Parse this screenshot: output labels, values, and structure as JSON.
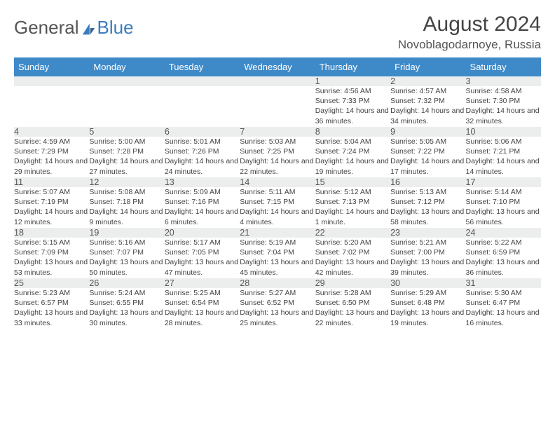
{
  "logo": {
    "text1": "General",
    "text2": "Blue"
  },
  "title": "August 2024",
  "location": "Novoblagodarnoye, Russia",
  "colors": {
    "header_bg": "#3e8ac9",
    "header_text": "#ffffff",
    "daynum_bg": "#eceded",
    "border": "#b6bdbf",
    "text": "#444444",
    "logo_gray": "#555555",
    "logo_blue": "#3a7cc0"
  },
  "weekdays": [
    "Sunday",
    "Monday",
    "Tuesday",
    "Wednesday",
    "Thursday",
    "Friday",
    "Saturday"
  ],
  "weeks": [
    [
      null,
      null,
      null,
      null,
      {
        "n": "1",
        "sr": "4:56 AM",
        "ss": "7:33 PM",
        "dl": "14 hours and 36 minutes."
      },
      {
        "n": "2",
        "sr": "4:57 AM",
        "ss": "7:32 PM",
        "dl": "14 hours and 34 minutes."
      },
      {
        "n": "3",
        "sr": "4:58 AM",
        "ss": "7:30 PM",
        "dl": "14 hours and 32 minutes."
      }
    ],
    [
      {
        "n": "4",
        "sr": "4:59 AM",
        "ss": "7:29 PM",
        "dl": "14 hours and 29 minutes."
      },
      {
        "n": "5",
        "sr": "5:00 AM",
        "ss": "7:28 PM",
        "dl": "14 hours and 27 minutes."
      },
      {
        "n": "6",
        "sr": "5:01 AM",
        "ss": "7:26 PM",
        "dl": "14 hours and 24 minutes."
      },
      {
        "n": "7",
        "sr": "5:03 AM",
        "ss": "7:25 PM",
        "dl": "14 hours and 22 minutes."
      },
      {
        "n": "8",
        "sr": "5:04 AM",
        "ss": "7:24 PM",
        "dl": "14 hours and 19 minutes."
      },
      {
        "n": "9",
        "sr": "5:05 AM",
        "ss": "7:22 PM",
        "dl": "14 hours and 17 minutes."
      },
      {
        "n": "10",
        "sr": "5:06 AM",
        "ss": "7:21 PM",
        "dl": "14 hours and 14 minutes."
      }
    ],
    [
      {
        "n": "11",
        "sr": "5:07 AM",
        "ss": "7:19 PM",
        "dl": "14 hours and 12 minutes."
      },
      {
        "n": "12",
        "sr": "5:08 AM",
        "ss": "7:18 PM",
        "dl": "14 hours and 9 minutes."
      },
      {
        "n": "13",
        "sr": "5:09 AM",
        "ss": "7:16 PM",
        "dl": "14 hours and 6 minutes."
      },
      {
        "n": "14",
        "sr": "5:11 AM",
        "ss": "7:15 PM",
        "dl": "14 hours and 4 minutes."
      },
      {
        "n": "15",
        "sr": "5:12 AM",
        "ss": "7:13 PM",
        "dl": "14 hours and 1 minute."
      },
      {
        "n": "16",
        "sr": "5:13 AM",
        "ss": "7:12 PM",
        "dl": "13 hours and 58 minutes."
      },
      {
        "n": "17",
        "sr": "5:14 AM",
        "ss": "7:10 PM",
        "dl": "13 hours and 56 minutes."
      }
    ],
    [
      {
        "n": "18",
        "sr": "5:15 AM",
        "ss": "7:09 PM",
        "dl": "13 hours and 53 minutes."
      },
      {
        "n": "19",
        "sr": "5:16 AM",
        "ss": "7:07 PM",
        "dl": "13 hours and 50 minutes."
      },
      {
        "n": "20",
        "sr": "5:17 AM",
        "ss": "7:05 PM",
        "dl": "13 hours and 47 minutes."
      },
      {
        "n": "21",
        "sr": "5:19 AM",
        "ss": "7:04 PM",
        "dl": "13 hours and 45 minutes."
      },
      {
        "n": "22",
        "sr": "5:20 AM",
        "ss": "7:02 PM",
        "dl": "13 hours and 42 minutes."
      },
      {
        "n": "23",
        "sr": "5:21 AM",
        "ss": "7:00 PM",
        "dl": "13 hours and 39 minutes."
      },
      {
        "n": "24",
        "sr": "5:22 AM",
        "ss": "6:59 PM",
        "dl": "13 hours and 36 minutes."
      }
    ],
    [
      {
        "n": "25",
        "sr": "5:23 AM",
        "ss": "6:57 PM",
        "dl": "13 hours and 33 minutes."
      },
      {
        "n": "26",
        "sr": "5:24 AM",
        "ss": "6:55 PM",
        "dl": "13 hours and 30 minutes."
      },
      {
        "n": "27",
        "sr": "5:25 AM",
        "ss": "6:54 PM",
        "dl": "13 hours and 28 minutes."
      },
      {
        "n": "28",
        "sr": "5:27 AM",
        "ss": "6:52 PM",
        "dl": "13 hours and 25 minutes."
      },
      {
        "n": "29",
        "sr": "5:28 AM",
        "ss": "6:50 PM",
        "dl": "13 hours and 22 minutes."
      },
      {
        "n": "30",
        "sr": "5:29 AM",
        "ss": "6:48 PM",
        "dl": "13 hours and 19 minutes."
      },
      {
        "n": "31",
        "sr": "5:30 AM",
        "ss": "6:47 PM",
        "dl": "13 hours and 16 minutes."
      }
    ]
  ],
  "labels": {
    "sunrise": "Sunrise:",
    "sunset": "Sunset:",
    "daylight": "Daylight:"
  }
}
